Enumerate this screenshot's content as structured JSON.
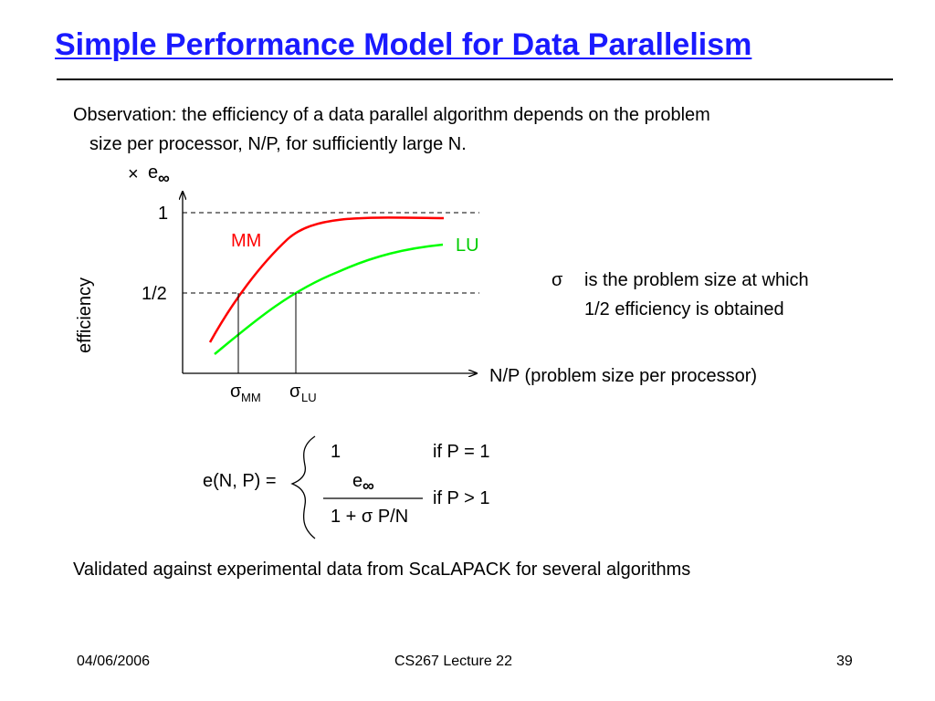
{
  "title": "Simple Performance Model for Data Parallelism",
  "observation": {
    "line1": "Observation: the efficiency of a data parallel algorithm depends on the problem",
    "line2": "size per processor, N/P, for sufficiently large N."
  },
  "figure": {
    "y_top_label_prefix": "×",
    "y_top_label_e": "e",
    "y_top_label_sub": "∞",
    "y_axis_label": "efficiency",
    "tick_one": "1",
    "tick_half": "1/2",
    "x_axis_label": "N/P (problem size per processor)",
    "sigma": "σ",
    "sigma_mm_sub": "MM",
    "sigma_lu_sub": "LU",
    "series_mm": "MM",
    "series_lu": "LU",
    "note_line1": "is the problem size at which",
    "note_line2": "1/2 efficiency is obtained",
    "colors": {
      "mm": "#ff0000",
      "lu": "#00ff00",
      "axes": "#000000",
      "title": "#1a1aff"
    }
  },
  "formula": {
    "lhs": "e(N, P) =",
    "case1_value": "1",
    "case1_cond": "if P = 1",
    "numerator_e": "e",
    "numerator_sub": "∞",
    "denominator": "1 + σ P/N",
    "case2_cond": "if P > 1"
  },
  "validated": "Validated against experimental data from ScaLAPACK for several algorithms",
  "footer": {
    "date": "04/06/2006",
    "course": "CS267 Lecture 22",
    "page": "39"
  }
}
